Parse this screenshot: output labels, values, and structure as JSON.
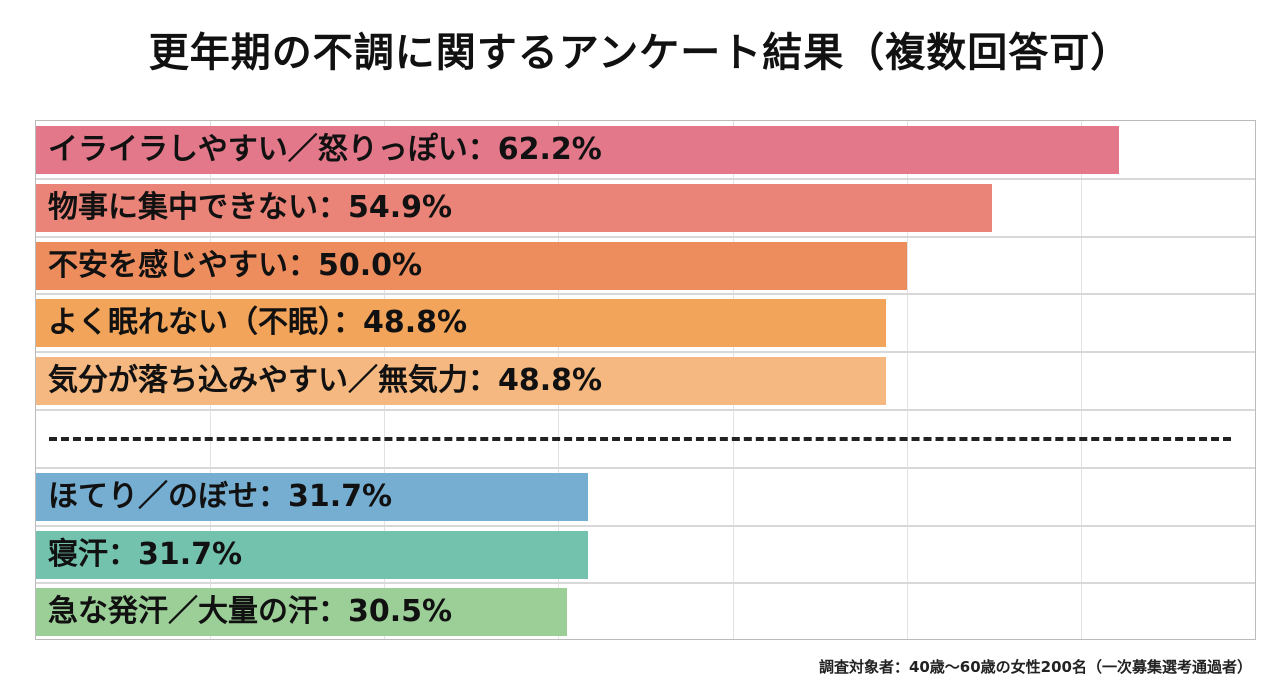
{
  "chart_data": {
    "type": "bar",
    "orientation": "horizontal",
    "title": "更年期の不調に関するアンケート結果（複数回答可）",
    "xlim": [
      0,
      70
    ],
    "grid": true,
    "categories": [
      "イライラしやすい／怒りっぽい",
      "物事に集中できない",
      "不安を感じやすい",
      "よく眠れない（不眠）",
      "気分が落ち込みやすい／無気力",
      "ほてり／のぼせ",
      "寝汗",
      "急な発汗／大量の汗"
    ],
    "values": [
      62.2,
      54.9,
      50.0,
      48.8,
      48.8,
      31.7,
      31.7,
      30.5
    ],
    "labels": [
      "イライラしやすい／怒りっぽい：62.2%",
      "物事に集中できない：54.9%",
      "不安を感じやすい：50.0%",
      "よく眠れない（不眠）：48.8%",
      "気分が落ち込みやすい／無気力：48.8%",
      "ほてり／のぼせ：31.7%",
      "寝汗：31.7%",
      "急な発汗／大量の汗：30.5%"
    ],
    "colors": [
      "#e2788a",
      "#eb8478",
      "#ed8d5e",
      "#f2a45a",
      "#f5b880",
      "#76aed1",
      "#72c2ad",
      "#9ccf98"
    ],
    "separator_after_index": 4,
    "note": "調査対象者：40歳〜60歳の女性200名（一次募集選考通過者）"
  }
}
